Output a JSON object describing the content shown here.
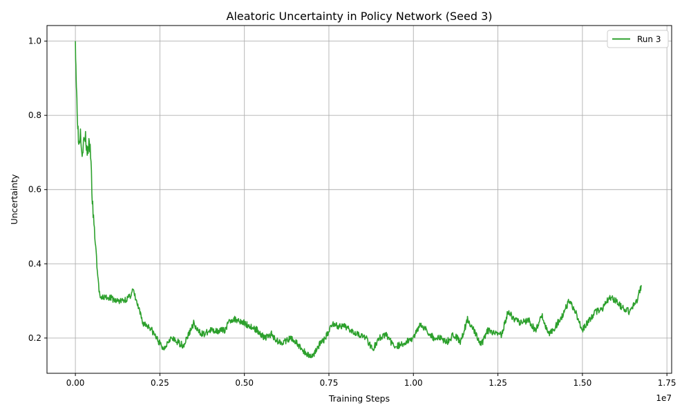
{
  "chart_data": {
    "type": "line",
    "title": "Aleatoric Uncertainty in Policy Network (Seed 3)",
    "xlabel": "Training Steps",
    "ylabel": "Uncertainty",
    "x_offset_label": "1e7",
    "xlim": [
      -0.084,
      1.764
    ],
    "ylim": [
      0.105,
      1.042
    ],
    "x_scale": 10000000,
    "x_ticks": [
      0.0,
      0.25,
      0.5,
      0.75,
      1.0,
      1.25,
      1.5,
      1.75
    ],
    "x_tick_labels": [
      "0.00",
      "0.25",
      "0.50",
      "0.75",
      "1.00",
      "1.25",
      "1.50",
      "1.75"
    ],
    "y_ticks": [
      0.2,
      0.4,
      0.6,
      0.8,
      1.0
    ],
    "y_tick_labels": [
      "0.2",
      "0.4",
      "0.6",
      "0.8",
      "1.0"
    ],
    "grid": true,
    "legend_position": "top-right",
    "series": [
      {
        "name": "Run 3",
        "color": "#2ca02c",
        "x": [
          0.0,
          0.003,
          0.006,
          0.01,
          0.015,
          0.02,
          0.025,
          0.03,
          0.035,
          0.04,
          0.045,
          0.05,
          0.055,
          0.06,
          0.065,
          0.07,
          0.075,
          0.08,
          0.1,
          0.12,
          0.14,
          0.16,
          0.17,
          0.18,
          0.2,
          0.22,
          0.24,
          0.26,
          0.28,
          0.3,
          0.32,
          0.34,
          0.35,
          0.36,
          0.38,
          0.4,
          0.42,
          0.44,
          0.46,
          0.48,
          0.5,
          0.52,
          0.54,
          0.56,
          0.58,
          0.6,
          0.62,
          0.64,
          0.66,
          0.68,
          0.7,
          0.72,
          0.74,
          0.76,
          0.78,
          0.8,
          0.82,
          0.84,
          0.86,
          0.88,
          0.9,
          0.92,
          0.94,
          0.96,
          0.98,
          1.0,
          1.02,
          1.04,
          1.06,
          1.08,
          1.1,
          1.12,
          1.14,
          1.16,
          1.18,
          1.2,
          1.22,
          1.24,
          1.26,
          1.28,
          1.3,
          1.32,
          1.34,
          1.36,
          1.38,
          1.4,
          1.42,
          1.44,
          1.46,
          1.48,
          1.5,
          1.52,
          1.54,
          1.56,
          1.58,
          1.6,
          1.62,
          1.64,
          1.66,
          1.675
        ],
        "y": [
          1.0,
          0.88,
          0.8,
          0.72,
          0.76,
          0.7,
          0.73,
          0.74,
          0.7,
          0.72,
          0.7,
          0.57,
          0.5,
          0.45,
          0.38,
          0.33,
          0.3,
          0.31,
          0.31,
          0.3,
          0.3,
          0.31,
          0.33,
          0.3,
          0.24,
          0.23,
          0.2,
          0.17,
          0.2,
          0.19,
          0.18,
          0.22,
          0.24,
          0.22,
          0.21,
          0.22,
          0.22,
          0.22,
          0.25,
          0.25,
          0.24,
          0.23,
          0.22,
          0.2,
          0.21,
          0.19,
          0.19,
          0.2,
          0.18,
          0.16,
          0.15,
          0.18,
          0.2,
          0.24,
          0.23,
          0.23,
          0.22,
          0.21,
          0.2,
          0.17,
          0.2,
          0.21,
          0.18,
          0.18,
          0.19,
          0.2,
          0.24,
          0.22,
          0.2,
          0.2,
          0.19,
          0.21,
          0.19,
          0.25,
          0.22,
          0.18,
          0.22,
          0.21,
          0.21,
          0.27,
          0.25,
          0.24,
          0.25,
          0.22,
          0.26,
          0.21,
          0.23,
          0.26,
          0.3,
          0.27,
          0.22,
          0.25,
          0.27,
          0.28,
          0.31,
          0.3,
          0.28,
          0.27,
          0.3,
          0.34
        ]
      }
    ]
  }
}
